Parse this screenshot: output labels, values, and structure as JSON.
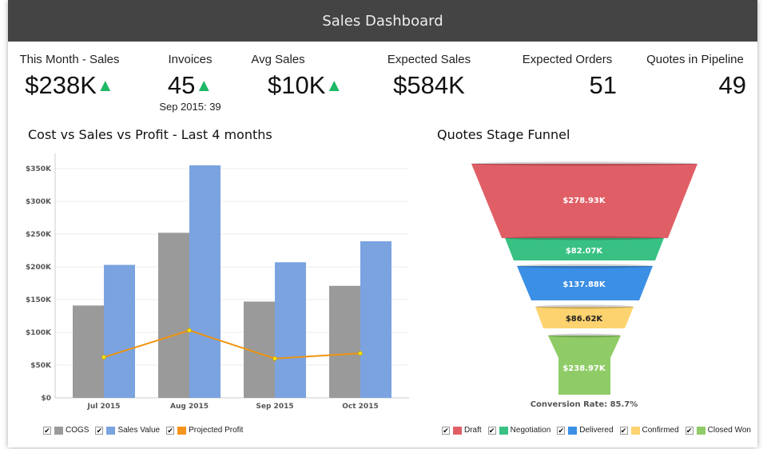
{
  "header": {
    "title": "Sales Dashboard"
  },
  "kpis": [
    {
      "label": "This Month - Sales",
      "value": "$238K",
      "trend": "up"
    },
    {
      "label": "Invoices",
      "value": "45",
      "trend": "up",
      "sub": "Sep 2015: 39"
    },
    {
      "label": "Avg Sales",
      "value": "$10K",
      "trend": "up"
    },
    {
      "label": "Expected Sales",
      "value": "$584K"
    },
    {
      "label": "Expected Orders",
      "value": "51"
    },
    {
      "label": "Quotes in Pipeline",
      "value": "49"
    }
  ],
  "trend_icon": "▲",
  "colors": {
    "cogs": "#9a9a9a",
    "sales": "#7aa3e0",
    "profit": "#e08a10",
    "up": "#1fb866"
  },
  "legend_check": "✔",
  "chart_data": [
    {
      "type": "bar",
      "title": "Cost vs Sales vs Profit - Last 4 months",
      "categories": [
        "Jul 2015",
        "Aug 2015",
        "Sep 2015",
        "Oct 2015"
      ],
      "ylim": [
        0,
        350000
      ],
      "yticks": [
        0,
        50000,
        100000,
        150000,
        200000,
        250000,
        300000,
        350000
      ],
      "ytick_labels": [
        "$0",
        "$50K",
        "$100K",
        "$150K",
        "$200K",
        "$250K",
        "$300K",
        "$350K"
      ],
      "grid": true,
      "legend": "bottom-left",
      "series": [
        {
          "name": "COGS",
          "type": "bar",
          "color": "#9a9a9a",
          "values": [
            141000,
            252000,
            147000,
            171000
          ]
        },
        {
          "name": "Sales Value",
          "type": "bar",
          "color": "#7aa3e0",
          "values": [
            203000,
            355000,
            207000,
            239000
          ]
        },
        {
          "name": "Projected Profit",
          "type": "line",
          "color": "#f0940f",
          "values": [
            62000,
            103000,
            60000,
            68000
          ]
        }
      ]
    },
    {
      "type": "funnel",
      "title": "Quotes Stage Funnel",
      "legend": "bottom",
      "stages": [
        {
          "name": "Draft",
          "value": "$278.93K",
          "color": "#e05f66"
        },
        {
          "name": "Negotiation",
          "value": "$82.07K",
          "color": "#38c183"
        },
        {
          "name": "Delivered",
          "value": "$137.88K",
          "color": "#3b8fe5"
        },
        {
          "name": "Confirmed",
          "value": "$86.62K",
          "color": "#fcd36f"
        },
        {
          "name": "Closed Won",
          "value": "$238.97K",
          "color": "#8fcc67"
        }
      ],
      "annotation": "Conversion Rate: 85.7%"
    }
  ]
}
